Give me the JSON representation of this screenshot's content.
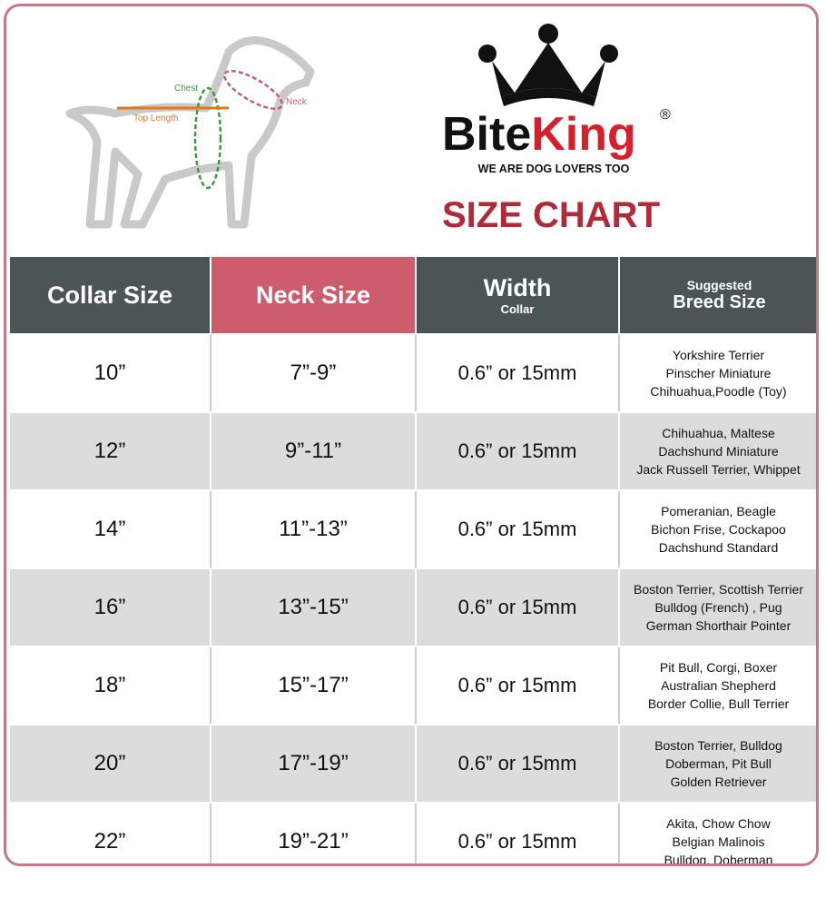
{
  "diagram": {
    "labels": [
      "Chest",
      "Neck",
      "Top Length"
    ]
  },
  "brand": {
    "name_black": "Bite",
    "name_red": "King",
    "mark": "®",
    "tagline": "WE ARE DOG LOVERS TOO",
    "title": "SIZE CHART"
  },
  "table": {
    "headers": [
      {
        "main": "Collar Size"
      },
      {
        "main": "Neck Size"
      },
      {
        "main": "Width",
        "sub": "Collar"
      },
      {
        "pre": "Suggested",
        "main": "Breed Size"
      }
    ],
    "rows": [
      [
        "10”",
        "7”-9”",
        "0.6” or 15mm",
        [
          "Yorkshire Terrier",
          "Pinscher Miniature",
          "Chihuahua,Poodle (Toy)"
        ]
      ],
      [
        "12”",
        "9”-11”",
        "0.6” or 15mm",
        [
          "Chihuahua, Maltese",
          "Dachshund Miniature",
          "Jack Russell Terrier, Whippet"
        ]
      ],
      [
        "14”",
        "11”-13”",
        "0.6” or 15mm",
        [
          "Pomeranian, Beagle",
          "Bichon Frise, Cockapoo",
          "Dachshund Standard"
        ]
      ],
      [
        "16”",
        "13”-15”",
        "0.6” or 15mm",
        [
          "Boston Terrier, Scottish Terrier",
          "Bulldog (French) , Pug",
          "German Shorthair Pointer"
        ]
      ],
      [
        "18”",
        "15”-17”",
        "0.6” or 15mm",
        [
          "Pit Bull, Corgi, Boxer",
          "Australian Shepherd",
          "Border Collie, Bull Terrier"
        ]
      ],
      [
        "20”",
        "17”-19”",
        "0.6” or 15mm",
        [
          "Boston Terrier, Bulldog",
          "Doberman, Pit Bull",
          "Golden Retriever"
        ]
      ],
      [
        "22”",
        "19”-21”",
        "0.6” or 15mm",
        [
          "Akita, Chow Chow",
          "Belgian Malinois",
          "Bulldog, Doberman"
        ]
      ]
    ]
  }
}
